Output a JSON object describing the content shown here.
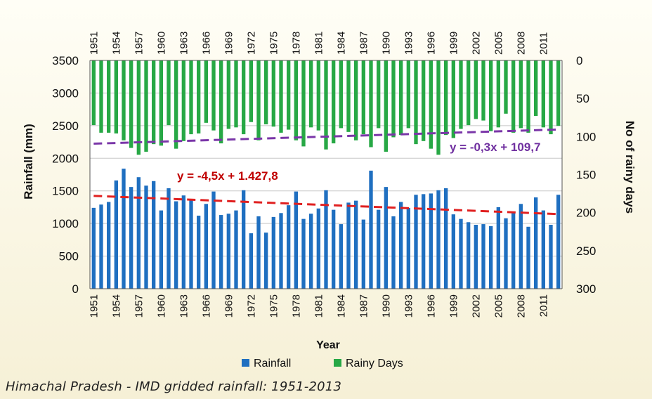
{
  "caption": "Himachal Pradesh - IMD gridded rainfall: 1951-2013",
  "colors": {
    "rainfall": "#1f6fc0",
    "rainy_days": "#27a845",
    "rainfall_trend": "#e02020",
    "rainy_days_trend": "#7a36a8",
    "rainfall_eq": "#c00000",
    "rainy_days_eq": "#7030a0"
  },
  "chart_data": {
    "type": "bar",
    "xlabel": "Year",
    "ylabel": "Rainfall (mm)",
    "y2label": "No of rainy days",
    "ylim": [
      0,
      3500
    ],
    "y2lim": [
      0,
      300
    ],
    "y2_inverted": true,
    "yticks": [
      "0",
      "500",
      "1000",
      "1500",
      "2000",
      "2500",
      "3000",
      "3500"
    ],
    "y2ticks": [
      "0",
      "50",
      "100",
      "150",
      "200",
      "250",
      "300"
    ],
    "xtick_labels": [
      "1951",
      "1954",
      "1957",
      "1960",
      "1963",
      "1966",
      "1969",
      "1972",
      "1975",
      "1978",
      "1981",
      "1984",
      "1987",
      "1990",
      "1993",
      "1996",
      "1999",
      "2002",
      "2005",
      "2008",
      "2011"
    ],
    "grid": "horizontal",
    "legend_position": "bottom",
    "years": [
      1951,
      1952,
      1953,
      1954,
      1955,
      1956,
      1957,
      1958,
      1959,
      1960,
      1961,
      1962,
      1963,
      1964,
      1965,
      1966,
      1967,
      1968,
      1969,
      1970,
      1971,
      1972,
      1973,
      1974,
      1975,
      1976,
      1977,
      1978,
      1979,
      1980,
      1981,
      1982,
      1983,
      1984,
      1985,
      1986,
      1987,
      1988,
      1989,
      1990,
      1991,
      1992,
      1993,
      1994,
      1995,
      1996,
      1997,
      1998,
      1999,
      2000,
      2001,
      2002,
      2003,
      2004,
      2005,
      2006,
      2007,
      2008,
      2009,
      2010,
      2011,
      2012,
      2013
    ],
    "series": [
      {
        "name": "Rainfall",
        "axis": "left",
        "values": [
          1240,
          1290,
          1330,
          1660,
          1840,
          1560,
          1710,
          1580,
          1650,
          1200,
          1540,
          1340,
          1430,
          1360,
          1120,
          1300,
          1490,
          1130,
          1150,
          1200,
          1510,
          850,
          1110,
          860,
          1100,
          1160,
          1280,
          1490,
          1070,
          1150,
          1230,
          1510,
          1210,
          990,
          1320,
          1350,
          1060,
          1810,
          1210,
          1560,
          1110,
          1330,
          1240,
          1440,
          1450,
          1460,
          1510,
          1540,
          1140,
          1070,
          1020,
          980,
          990,
          960,
          1250,
          1080,
          1160,
          1300,
          950,
          1400,
          1200,
          980,
          1440
        ]
      },
      {
        "name": "Rainy Days",
        "axis": "right",
        "values": [
          85,
          95,
          95,
          96,
          105,
          115,
          124,
          120,
          110,
          112,
          85,
          116,
          106,
          97,
          96,
          82,
          92,
          109,
          90,
          88,
          97,
          81,
          105,
          84,
          87,
          95,
          91,
          105,
          113,
          88,
          92,
          117,
          109,
          89,
          94,
          105,
          97,
          114,
          89,
          120,
          101,
          98,
          89,
          110,
          106,
          116,
          124,
          98,
          102,
          90,
          85,
          77,
          79,
          93,
          88,
          70,
          95,
          89,
          95,
          73,
          88,
          97,
          86
        ]
      }
    ],
    "trendlines": [
      {
        "series": "Rainfall",
        "equation": "y = -4,5x + 1.427,8",
        "slope": -4.5,
        "intercept": 1427.8
      },
      {
        "series": "Rainy Days",
        "equation": "y = -0,3x + 109,7",
        "slope": -0.3,
        "intercept": 109.7
      }
    ]
  }
}
